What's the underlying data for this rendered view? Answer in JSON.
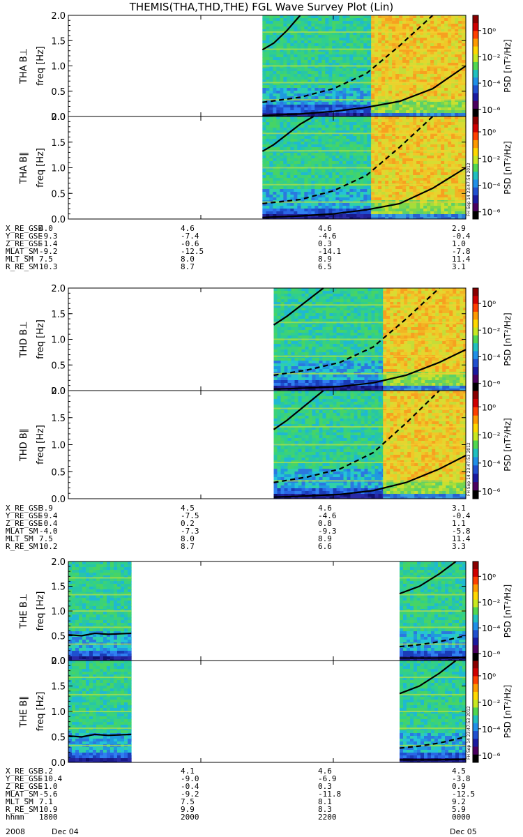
{
  "title": "THEMIS(THA,THD,THE) FGL Wave Survey Plot (Lin)",
  "colors": {
    "background": "#ffffff",
    "axis": "#000000",
    "curve": "#000000",
    "data_gap": "#ffffff"
  },
  "chart_data": [
    {
      "probe": "THA",
      "type": "heatmap",
      "panels": [
        {
          "ylabel": "THA B⊥",
          "ylabel2": "freq [Hz]",
          "ylim": [
            0,
            2.0
          ],
          "yticks": [
            "0.0",
            "0.5",
            "1.0",
            "1.5",
            "2.0"
          ],
          "data_hours": [
            [
              20.93,
              22.57
            ],
            [
              22.57,
              24.0
            ]
          ],
          "data_level": [
            "green",
            "yellow"
          ],
          "curves": [
            {
              "style": "solid",
              "x": [
                20.93,
                21.1,
                21.3,
                21.5
              ],
              "y": [
                1.32,
                1.45,
                1.7,
                2.0
              ]
            },
            {
              "style": "dashed",
              "x": [
                20.93,
                21.5,
                22.0,
                22.5,
                23.0,
                23.5
              ],
              "y": [
                0.28,
                0.38,
                0.55,
                0.85,
                1.4,
                2.0
              ]
            },
            {
              "style": "solid",
              "x": [
                20.93,
                21.5,
                22.0,
                22.5,
                23.0,
                23.5,
                24.0
              ],
              "y": [
                0.02,
                0.05,
                0.1,
                0.18,
                0.3,
                0.55,
                1.0
              ]
            }
          ]
        },
        {
          "ylabel": "THA B∥",
          "ylabel2": "freq [Hz]",
          "ylim": [
            0,
            2.0
          ],
          "yticks": [
            "0.0",
            "0.5",
            "1.0",
            "1.5",
            "2.0"
          ],
          "data_hours": [
            [
              20.93,
              22.57
            ],
            [
              22.57,
              24.0
            ]
          ],
          "data_level": [
            "green",
            "yellow"
          ],
          "curves": [
            {
              "style": "solid",
              "x": [
                20.93,
                21.1,
                21.3,
                21.5,
                21.7
              ],
              "y": [
                1.32,
                1.45,
                1.65,
                1.85,
                2.0
              ]
            },
            {
              "style": "dashed",
              "x": [
                20.93,
                21.5,
                22.0,
                22.5,
                23.0,
                23.5
              ],
              "y": [
                0.3,
                0.38,
                0.55,
                0.85,
                1.4,
                2.0
              ]
            },
            {
              "style": "solid",
              "x": [
                20.93,
                21.5,
                22.0,
                22.5,
                23.0,
                23.5,
                24.0
              ],
              "y": [
                0.03,
                0.06,
                0.1,
                0.18,
                0.3,
                0.6,
                1.0
              ]
            }
          ]
        }
      ],
      "colorbar": {
        "label": "PSD [nT²/Hz]",
        "ticks": [
          "10⁰",
          "10⁻²",
          "10⁻⁴",
          "10⁻⁶"
        ]
      },
      "stamp": "FH Sep 14 23:47:54 2012",
      "orbit": {
        "rows": [
          {
            "name": "X_RE_GSE",
            "values": [
              "4.0",
              "4.6",
              "4.6",
              "2.9"
            ]
          },
          {
            "name": "Y_RE_GSE",
            "values": [
              "-9.3",
              "-7.4",
              "-4.6",
              "-0.4"
            ]
          },
          {
            "name": "Z_RE_GSE",
            "values": [
              "-1.4",
              "-0.6",
              "0.3",
              "1.0"
            ]
          },
          {
            "name": "MLAT_SM",
            "values": [
              "-9.2",
              "-12.5",
              "-14.1",
              "-7.8"
            ]
          },
          {
            "name": "MLT_SM",
            "values": [
              "7.5",
              "8.0",
              "8.9",
              "11.4"
            ]
          },
          {
            "name": "R_RE_SM",
            "values": [
              "10.3",
              "8.7",
              "6.5",
              "3.1"
            ]
          }
        ]
      }
    },
    {
      "probe": "THD",
      "type": "heatmap",
      "panels": [
        {
          "ylabel": "THD B⊥",
          "ylabel2": "freq [Hz]",
          "ylim": [
            0,
            2.0
          ],
          "yticks": [
            "0.0",
            "0.5",
            "1.0",
            "1.5",
            "2.0"
          ],
          "data_hours": [
            [
              21.1,
              22.75
            ],
            [
              22.75,
              24.0
            ]
          ],
          "data_level": [
            "green",
            "yellow"
          ],
          "curves": [
            {
              "style": "solid",
              "x": [
                21.1,
                21.3,
                21.5,
                21.7,
                21.85
              ],
              "y": [
                1.28,
                1.45,
                1.65,
                1.85,
                2.0
              ]
            },
            {
              "style": "dashed",
              "x": [
                21.1,
                21.6,
                22.1,
                22.6,
                23.1,
                23.6
              ],
              "y": [
                0.3,
                0.4,
                0.55,
                0.85,
                1.4,
                2.0
              ]
            },
            {
              "style": "solid",
              "x": [
                21.1,
                21.6,
                22.1,
                22.6,
                23.1,
                23.6,
                24.0
              ],
              "y": [
                0.03,
                0.05,
                0.08,
                0.15,
                0.3,
                0.55,
                0.8
              ]
            }
          ]
        },
        {
          "ylabel": "THD B∥",
          "ylabel2": "freq [Hz]",
          "ylim": [
            0,
            2.0
          ],
          "yticks": [
            "0.0",
            "0.5",
            "1.0",
            "1.5",
            "2.0"
          ],
          "data_hours": [
            [
              21.1,
              22.75
            ],
            [
              22.75,
              24.0
            ]
          ],
          "data_level": [
            "green",
            "yellow"
          ],
          "curves": [
            {
              "style": "solid",
              "x": [
                21.1,
                21.3,
                21.5,
                21.7,
                21.85
              ],
              "y": [
                1.28,
                1.45,
                1.65,
                1.85,
                2.0
              ]
            },
            {
              "style": "dashed",
              "x": [
                21.1,
                21.6,
                22.1,
                22.6,
                23.1,
                23.6
              ],
              "y": [
                0.3,
                0.4,
                0.55,
                0.85,
                1.4,
                2.0
              ]
            },
            {
              "style": "solid",
              "x": [
                21.1,
                21.6,
                22.1,
                22.6,
                23.1,
                23.6,
                24.0
              ],
              "y": [
                0.03,
                0.05,
                0.08,
                0.15,
                0.3,
                0.55,
                0.8
              ]
            }
          ]
        }
      ],
      "colorbar": {
        "label": "PSD [nT²/Hz]",
        "ticks": [
          "10⁰",
          "10⁻²",
          "10⁻⁴",
          "10⁻⁶"
        ]
      },
      "stamp": "FH Sep 14 23:47:53 2012",
      "orbit": {
        "rows": [
          {
            "name": "X_RE_GSE",
            "values": [
              "3.9",
              "4.5",
              "4.6",
              "3.1"
            ]
          },
          {
            "name": "Y_RE_GSE",
            "values": [
              "-9.4",
              "-7.5",
              "-4.6",
              "-0.4"
            ]
          },
          {
            "name": "Z_RE_GSE",
            "values": [
              "-0.4",
              "0.2",
              "0.8",
              "1.1"
            ]
          },
          {
            "name": "MLAT_SM",
            "values": [
              "-4.0",
              "-7.3",
              "-9.3",
              "-5.8"
            ]
          },
          {
            "name": "MLT_SM",
            "values": [
              "7.5",
              "8.0",
              "8.9",
              "11.4"
            ]
          },
          {
            "name": "R_RE_SM",
            "values": [
              "10.2",
              "8.7",
              "6.6",
              "3.3"
            ]
          }
        ]
      }
    },
    {
      "probe": "THE",
      "type": "heatmap",
      "panels": [
        {
          "ylabel": "THE B⊥",
          "ylabel2": "freq [Hz]",
          "ylim": [
            0,
            2.0
          ],
          "yticks": [
            "0.0",
            "0.5",
            "1.0",
            "1.5",
            "2.0"
          ],
          "data_hours": [
            [
              18.0,
              18.95
            ],
            [
              23.0,
              24.0
            ]
          ],
          "data_level": [
            "green",
            "green"
          ],
          "curves": [
            {
              "style": "solid",
              "x": [
                18.0,
                18.2,
                18.4,
                18.6,
                18.95
              ],
              "y": [
                0.52,
                0.5,
                0.55,
                0.53,
                0.55
              ]
            },
            {
              "style": "solid",
              "x": [
                23.0,
                23.3,
                23.6,
                23.85
              ],
              "y": [
                1.35,
                1.5,
                1.75,
                2.0
              ]
            },
            {
              "style": "dashed",
              "x": [
                23.0,
                23.3,
                23.6,
                24.0
              ],
              "y": [
                0.28,
                0.32,
                0.38,
                0.5
              ]
            },
            {
              "style": "solid",
              "x": [
                23.0,
                23.5,
                24.0
              ],
              "y": [
                0.05,
                0.05,
                0.06
              ]
            }
          ]
        },
        {
          "ylabel": "THE B∥",
          "ylabel2": "freq [Hz]",
          "ylim": [
            0,
            2.0
          ],
          "yticks": [
            "0.0",
            "0.5",
            "1.0",
            "1.5",
            "2.0"
          ],
          "data_hours": [
            [
              18.0,
              18.95
            ],
            [
              23.0,
              24.0
            ]
          ],
          "data_level": [
            "green",
            "green"
          ],
          "curves": [
            {
              "style": "solid",
              "x": [
                18.0,
                18.2,
                18.4,
                18.6,
                18.95
              ],
              "y": [
                0.52,
                0.5,
                0.55,
                0.53,
                0.55
              ]
            },
            {
              "style": "solid",
              "x": [
                23.0,
                23.3,
                23.6,
                23.85
              ],
              "y": [
                1.35,
                1.5,
                1.75,
                2.0
              ]
            },
            {
              "style": "dashed",
              "x": [
                23.0,
                23.3,
                23.6,
                24.0
              ],
              "y": [
                0.28,
                0.32,
                0.38,
                0.5
              ]
            },
            {
              "style": "solid",
              "x": [
                23.0,
                23.5,
                24.0
              ],
              "y": [
                0.05,
                0.05,
                0.06
              ]
            }
          ]
        }
      ],
      "colorbar": {
        "label": "PSD [nT²/Hz]",
        "ticks": [
          "10⁰",
          "10⁻²",
          "10⁻⁴",
          "10⁻⁶"
        ]
      },
      "stamp": "FH Sep 14 23:47:53 2012",
      "orbit": {
        "rows": [
          {
            "name": "X_RE_GSE",
            "values": [
              "3.2",
              "4.1",
              "4.6",
              "4.5"
            ]
          },
          {
            "name": "Y_RE_GSE",
            "values": [
              "-10.4",
              "-9.0",
              "-6.9",
              "-3.8"
            ]
          },
          {
            "name": "Z_RE_GSE",
            "values": [
              "-1.0",
              "-0.4",
              "0.3",
              "0.9"
            ]
          },
          {
            "name": "MLAT_SM",
            "values": [
              "-5.6",
              "-9.2",
              "-11.8",
              "-12.5"
            ]
          },
          {
            "name": "MLT_SM",
            "values": [
              "7.1",
              "7.5",
              "8.1",
              "9.2"
            ]
          },
          {
            "name": "R_RE_SM",
            "values": [
              "10.9",
              "9.9",
              "8.3",
              "5.9"
            ]
          },
          {
            "name": "hhmm",
            "values": [
              "1800",
              "2000",
              "2200",
              "0000"
            ]
          }
        ]
      }
    }
  ],
  "date_row": {
    "left": "2008",
    "left_date": "Dec 04",
    "right_date": "Dec 05"
  }
}
